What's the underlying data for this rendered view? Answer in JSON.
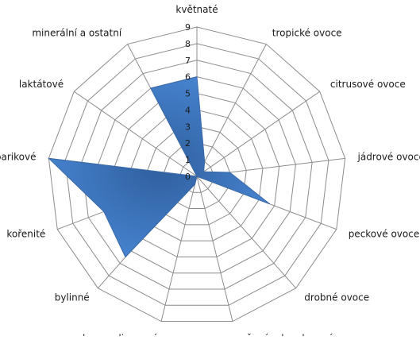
{
  "chart_data": {
    "type": "radar",
    "categories": [
      "květnaté",
      "tropické ovoce",
      "citrusové ovoce",
      "jádrové ovoce",
      "peckové ovoce",
      "drobné ovoce",
      "sušené a kandované ovoce",
      "karamelizované",
      "bylinné",
      "kořenité",
      "barikové",
      "laktátové",
      "minerální a ostatní"
    ],
    "series": [
      {
        "values": [
          6,
          1,
          0.5,
          2,
          4.7,
          0,
          0,
          0.5,
          6.5,
          6,
          9,
          0,
          6
        ],
        "color": "#3a75c4"
      }
    ],
    "ylim": [
      0,
      9
    ],
    "ticks": [
      "0",
      "1",
      "2",
      "3",
      "4",
      "5",
      "6",
      "7",
      "8",
      "9"
    ],
    "grid": true,
    "legend": "none"
  }
}
